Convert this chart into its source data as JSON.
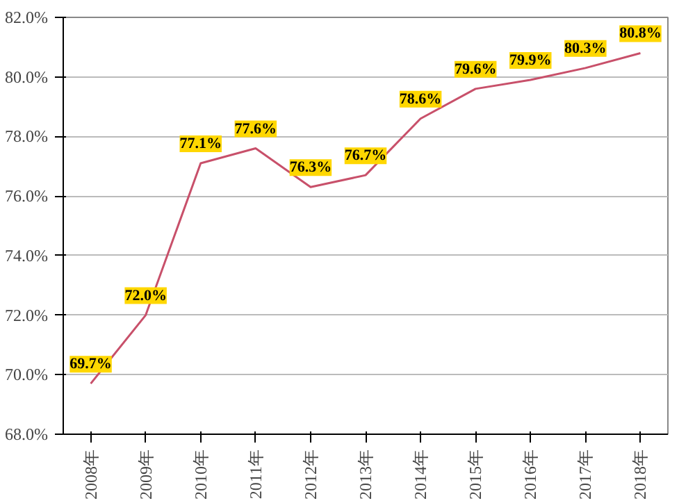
{
  "chart_data": {
    "type": "line",
    "categories": [
      "2008年",
      "2009年",
      "2010年",
      "2011年",
      "2012年",
      "2013年",
      "2014年",
      "2015年",
      "2016年",
      "2017年",
      "2018年"
    ],
    "series": [
      {
        "color": "#c8506a",
        "values": [
          69.7,
          72.0,
          77.1,
          77.6,
          76.3,
          76.7,
          78.6,
          79.6,
          79.9,
          80.3,
          80.8
        ],
        "value_labels": [
          "69.7%",
          "72.0%",
          "77.1%",
          "77.6%",
          "76.3%",
          "76.7%",
          "78.6%",
          "79.6%",
          "79.9%",
          "80.3%",
          "80.8%"
        ]
      }
    ],
    "ylim": [
      68,
      82
    ],
    "yticks": [
      {
        "value": 68,
        "label": "68.0%"
      },
      {
        "value": 70,
        "label": "70.0%"
      },
      {
        "value": 72,
        "label": "72.0%"
      },
      {
        "value": 74,
        "label": "74.0%"
      },
      {
        "value": 76,
        "label": "76.0%"
      },
      {
        "value": 78,
        "label": "78.0%"
      },
      {
        "value": 80,
        "label": "80.0%"
      },
      {
        "value": 82,
        "label": "82.0%"
      }
    ],
    "grid": "y",
    "marker": "none",
    "line_style": "solid"
  }
}
